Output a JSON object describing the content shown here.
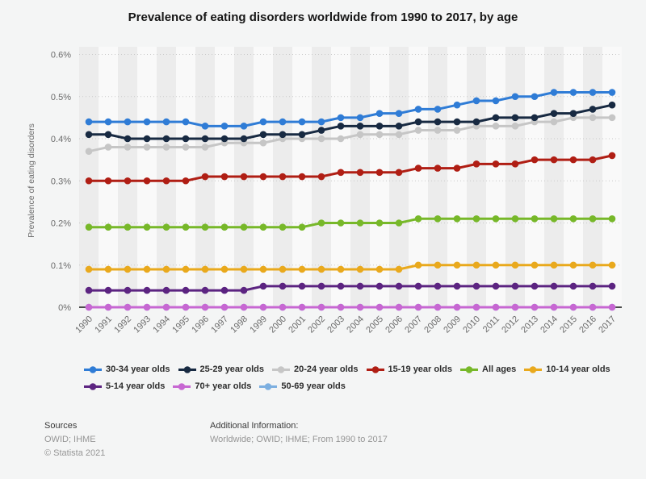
{
  "chart_data": {
    "type": "line",
    "title": "Prevalence of eating disorders worldwide from 1990 to 2017, by age",
    "xlabel": "",
    "ylabel": "Prevalence of eating disorders",
    "unit": "%",
    "ylim": [
      0,
      0.6
    ],
    "y_ticks": [
      "0%",
      "0.1%",
      "0.2%",
      "0.3%",
      "0.4%",
      "0.5%",
      "0.6%"
    ],
    "grid": "dotted horizontal gridlines, alternating vertical plot bands",
    "legend_position": "bottom-left, two rows",
    "x": [
      1990,
      1991,
      1992,
      1993,
      1994,
      1995,
      1996,
      1997,
      1998,
      1999,
      2000,
      2001,
      2002,
      2003,
      2004,
      2005,
      2006,
      2007,
      2008,
      2009,
      2010,
      2011,
      2012,
      2013,
      2014,
      2015,
      2016,
      2017
    ],
    "series": [
      {
        "name": "30-34 year olds",
        "color": "#2f7cd6",
        "values": [
          0.44,
          0.44,
          0.44,
          0.44,
          0.44,
          0.44,
          0.43,
          0.43,
          0.43,
          0.44,
          0.44,
          0.44,
          0.44,
          0.45,
          0.45,
          0.46,
          0.46,
          0.47,
          0.47,
          0.48,
          0.49,
          0.49,
          0.5,
          0.5,
          0.51,
          0.51,
          0.51,
          0.51
        ]
      },
      {
        "name": "25-29 year olds",
        "color": "#182a42",
        "values": [
          0.41,
          0.41,
          0.4,
          0.4,
          0.4,
          0.4,
          0.4,
          0.4,
          0.4,
          0.41,
          0.41,
          0.41,
          0.42,
          0.43,
          0.43,
          0.43,
          0.43,
          0.44,
          0.44,
          0.44,
          0.44,
          0.45,
          0.45,
          0.45,
          0.46,
          0.46,
          0.47,
          0.48
        ]
      },
      {
        "name": "20-24 year olds",
        "color": "#c6c6c6",
        "values": [
          0.37,
          0.38,
          0.38,
          0.38,
          0.38,
          0.38,
          0.38,
          0.39,
          0.39,
          0.39,
          0.4,
          0.4,
          0.4,
          0.4,
          0.41,
          0.41,
          0.41,
          0.42,
          0.42,
          0.42,
          0.43,
          0.43,
          0.43,
          0.44,
          0.44,
          0.45,
          0.45,
          0.45
        ]
      },
      {
        "name": "15-19 year olds",
        "color": "#b01e14",
        "values": [
          0.3,
          0.3,
          0.3,
          0.3,
          0.3,
          0.3,
          0.31,
          0.31,
          0.31,
          0.31,
          0.31,
          0.31,
          0.31,
          0.32,
          0.32,
          0.32,
          0.32,
          0.33,
          0.33,
          0.33,
          0.34,
          0.34,
          0.34,
          0.35,
          0.35,
          0.35,
          0.35,
          0.36
        ]
      },
      {
        "name": "All ages",
        "color": "#77b829",
        "values": [
          0.19,
          0.19,
          0.19,
          0.19,
          0.19,
          0.19,
          0.19,
          0.19,
          0.19,
          0.19,
          0.19,
          0.19,
          0.2,
          0.2,
          0.2,
          0.2,
          0.2,
          0.21,
          0.21,
          0.21,
          0.21,
          0.21,
          0.21,
          0.21,
          0.21,
          0.21,
          0.21,
          0.21
        ]
      },
      {
        "name": "10-14 year olds",
        "color": "#e9a91d",
        "values": [
          0.09,
          0.09,
          0.09,
          0.09,
          0.09,
          0.09,
          0.09,
          0.09,
          0.09,
          0.09,
          0.09,
          0.09,
          0.09,
          0.09,
          0.09,
          0.09,
          0.09,
          0.1,
          0.1,
          0.1,
          0.1,
          0.1,
          0.1,
          0.1,
          0.1,
          0.1,
          0.1,
          0.1
        ]
      },
      {
        "name": "5-14 year olds",
        "color": "#5c2481",
        "values": [
          0.04,
          0.04,
          0.04,
          0.04,
          0.04,
          0.04,
          0.04,
          0.04,
          0.04,
          0.05,
          0.05,
          0.05,
          0.05,
          0.05,
          0.05,
          0.05,
          0.05,
          0.05,
          0.05,
          0.05,
          0.05,
          0.05,
          0.05,
          0.05,
          0.05,
          0.05,
          0.05,
          0.05
        ]
      },
      {
        "name": "70+ year olds",
        "color": "#c767d2",
        "values": [
          0,
          0,
          0,
          0,
          0,
          0,
          0,
          0,
          0,
          0,
          0,
          0,
          0,
          0,
          0,
          0,
          0,
          0,
          0,
          0,
          0,
          0,
          0,
          0,
          0,
          0,
          0,
          0
        ]
      },
      {
        "name": "50-69 year olds",
        "color": "#7cafe0",
        "values": [
          0,
          0,
          0,
          0,
          0,
          0,
          0,
          0,
          0,
          0,
          0,
          0,
          0,
          0,
          0,
          0,
          0,
          0,
          0,
          0,
          0,
          0,
          0,
          0,
          0,
          0,
          0,
          0
        ]
      }
    ],
    "legend_rows": [
      [
        0,
        1,
        2,
        3,
        4,
        5
      ],
      [
        6,
        7,
        8
      ]
    ]
  },
  "colors": {
    "page_background": "#f4f5f5",
    "plot_band_dark": "#ececec",
    "plot_band_light": "#f9f9f9",
    "gridline": "#c9c9c9",
    "axis_line": "#4a4a4a",
    "tick_label": "#6b6b6b"
  },
  "footer": {
    "sources_label": "Sources",
    "sources_value": "OWID; IHME",
    "copyright": "© Statista 2021",
    "additional_label": "Additional Information:",
    "additional_value": "Worldwide; OWID; IHME; From 1990 to 2017"
  }
}
